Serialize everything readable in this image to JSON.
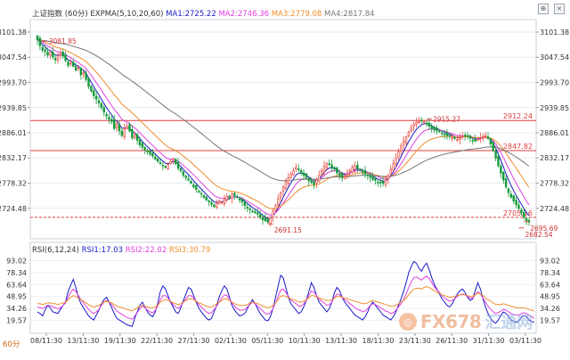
{
  "header": {
    "title": "上证指数",
    "period": "60分",
    "indicator": "EXPMA(5,10,20,60)",
    "ma1": "MA1:2725.22",
    "ma2": "MA2:2746.36",
    "ma3": "MA3:2779.08",
    "ma4": "MA4:2817.84"
  },
  "rsi_header": {
    "indicator": "RSI(6,12,24)",
    "rsi1": "RSI1:17.03",
    "rsi2": "RSI2:22.02",
    "rsi3": "RSI3:30.79"
  },
  "toolbar": {
    "zoom_icon": "search-plus-icon",
    "close_icon": "close-icon"
  },
  "bottom_label": "60分",
  "watermark": {
    "text": "FX678",
    "cn": "汇通网"
  },
  "colors": {
    "up": "#e8493f",
    "down": "#169b3b",
    "ma1": "#1a1ac8",
    "ma2": "#e040e0",
    "ma3": "#ef8e2c",
    "ma4": "#777777",
    "hline": "#e03c3c"
  },
  "chart_data": [
    {
      "type": "candlestick",
      "y_ticks": [
        "3101.38",
        "3047.54",
        "2993.70",
        "2939.85",
        "2886.01",
        "2832.17",
        "2778.32",
        "2724.48"
      ],
      "ylim": [
        2670.64,
        3101.38
      ],
      "x_ticks": [
        "08/11:30",
        "13/11:30",
        "19/11:30",
        "22/11:30",
        "27/11:30",
        "02/11:30",
        "05/11:30",
        "10/11:30",
        "13/11:30",
        "18/11:30",
        "23/11:30",
        "26/11:30",
        "31/11:30",
        "03/11:30"
      ],
      "horizontal_lines": [
        {
          "value": 2912.24,
          "label": "2912.24"
        },
        {
          "value": 2847.82,
          "label": "2847.82"
        },
        {
          "value": 2705.16,
          "label": "2705.16"
        }
      ],
      "annotations": [
        {
          "text": "3081.85",
          "value": 3081.85,
          "index": 2
        },
        {
          "text": "2915.27",
          "value": 2915.27,
          "index": 152
        },
        {
          "text": "2691.15",
          "value": 2691.15,
          "index": 90
        },
        {
          "text": "2695.69",
          "value": 2695.69,
          "index": 190
        },
        {
          "text": "2682.54",
          "value": 2682.54,
          "index": 188
        }
      ],
      "close": [
        3085,
        3072,
        3063,
        3060,
        3052,
        3058,
        3048,
        3042,
        3051,
        3055,
        3050,
        3040,
        3030,
        3035,
        3028,
        3020,
        3025,
        3010,
        3015,
        3000,
        2985,
        2975,
        2965,
        2958,
        2950,
        2940,
        2930,
        2922,
        2915,
        2910,
        2895,
        2905,
        2890,
        2880,
        2895,
        2900,
        2890,
        2875,
        2880,
        2870,
        2860,
        2855,
        2850,
        2845,
        2840,
        2836,
        2830,
        2825,
        2820,
        2815,
        2812,
        2818,
        2825,
        2830,
        2820,
        2810,
        2805,
        2795,
        2790,
        2785,
        2778,
        2770,
        2765,
        2760,
        2755,
        2748,
        2742,
        2738,
        2733,
        2728,
        2735,
        2740,
        2738,
        2745,
        2750,
        2748,
        2755,
        2752,
        2748,
        2742,
        2738,
        2730,
        2725,
        2722,
        2718,
        2715,
        2712,
        2705,
        2700,
        2698,
        2695,
        2705,
        2718,
        2730,
        2745,
        2758,
        2770,
        2782,
        2790,
        2798,
        2805,
        2812,
        2808,
        2800,
        2795,
        2790,
        2783,
        2780,
        2775,
        2785,
        2795,
        2805,
        2815,
        2820,
        2818,
        2812,
        2808,
        2800,
        2795,
        2790,
        2792,
        2798,
        2805,
        2812,
        2815,
        2810,
        2806,
        2802,
        2798,
        2794,
        2790,
        2786,
        2784,
        2780,
        2779,
        2778,
        2785,
        2795,
        2808,
        2820,
        2832,
        2845,
        2858,
        2868,
        2878,
        2888,
        2896,
        2903,
        2908,
        2910,
        2912,
        2910,
        2905,
        2900,
        2895,
        2892,
        2890,
        2888,
        2885,
        2882,
        2880,
        2878,
        2876,
        2874,
        2872,
        2875,
        2879,
        2880,
        2878,
        2874,
        2870,
        2868,
        2872,
        2876,
        2878,
        2880,
        2874,
        2862,
        2848,
        2832,
        2815,
        2800,
        2785,
        2770,
        2758,
        2748,
        2740,
        2732,
        2724,
        2715,
        2705,
        2698,
        2695
      ]
    },
    {
      "type": "line",
      "title": "RSI(6,12,24)",
      "y_ticks": [
        "93.02",
        "78.34",
        "63.64",
        "48.95",
        "34.26",
        "19.57"
      ],
      "ylim": [
        8,
        98
      ],
      "series": [
        {
          "name": "RSI1",
          "color": "#1a1ac8",
          "values": [
            30,
            28,
            25,
            32,
            38,
            35,
            30,
            29,
            28,
            33,
            38,
            42,
            55,
            63,
            70,
            60,
            48,
            40,
            35,
            30,
            25,
            22,
            20,
            26,
            32,
            40,
            45,
            48,
            42,
            35,
            28,
            22,
            20,
            18,
            16,
            14,
            13,
            12,
            22,
            30,
            38,
            42,
            36,
            30,
            26,
            24,
            30,
            40,
            55,
            62,
            58,
            50,
            42,
            36,
            30,
            28,
            35,
            44,
            52,
            60,
            58,
            50,
            42,
            35,
            30,
            26,
            22,
            20,
            22,
            30,
            38,
            48,
            56,
            62,
            58,
            48,
            38,
            32,
            28,
            25,
            26,
            28,
            34,
            40,
            45,
            40,
            34,
            28,
            24,
            20,
            19,
            24,
            34,
            48,
            62,
            75,
            72,
            60,
            48,
            40,
            36,
            32,
            28,
            30,
            36,
            44,
            55,
            66,
            60,
            50,
            42,
            38,
            34,
            30,
            34,
            42,
            54,
            60,
            56,
            48,
            42,
            38,
            34,
            30,
            26,
            24,
            22,
            20,
            24,
            30,
            38,
            42,
            38,
            34,
            30,
            26,
            24,
            22,
            20,
            24,
            30,
            38,
            46,
            55,
            66,
            78,
            86,
            92,
            90,
            84,
            80,
            86,
            90,
            82,
            72,
            64,
            58,
            52,
            46,
            42,
            38,
            36,
            40,
            46,
            52,
            56,
            58,
            54,
            48,
            44,
            46,
            56,
            66,
            58,
            46,
            36,
            28,
            22,
            18,
            16,
            20,
            26,
            30,
            28,
            24,
            20,
            18,
            17,
            19,
            23,
            26,
            24,
            20,
            18,
            17
          ]
        },
        {
          "name": "RSI2",
          "color": "#e040e0",
          "values": [
            36,
            35,
            34,
            36,
            38,
            38,
            36,
            35,
            34,
            35,
            38,
            41,
            48,
            54,
            58,
            55,
            50,
            45,
            41,
            37,
            33,
            30,
            28,
            30,
            33,
            38,
            42,
            44,
            42,
            39,
            35,
            31,
            29,
            27,
            25,
            23,
            22,
            21,
            25,
            29,
            34,
            37,
            35,
            32,
            30,
            29,
            32,
            37,
            45,
            50,
            50,
            47,
            43,
            39,
            36,
            34,
            37,
            42,
            46,
            50,
            50,
            47,
            43,
            39,
            36,
            33,
            30,
            28,
            29,
            33,
            37,
            42,
            47,
            51,
            50,
            46,
            41,
            37,
            34,
            32,
            32,
            33,
            36,
            39,
            42,
            40,
            37,
            34,
            31,
            28,
            27,
            29,
            34,
            41,
            49,
            57,
            58,
            54,
            49,
            45,
            42,
            40,
            37,
            37,
            40,
            44,
            50,
            56,
            54,
            50,
            46,
            43,
            41,
            38,
            39,
            42,
            48,
            52,
            51,
            48,
            45,
            43,
            40,
            38,
            35,
            33,
            32,
            30,
            31,
            34,
            38,
            40,
            39,
            37,
            35,
            33,
            31,
            30,
            28,
            29,
            32,
            36,
            40,
            45,
            52,
            60,
            67,
            72,
            73,
            71,
            69,
            72,
            74,
            71,
            66,
            61,
            57,
            54,
            50,
            47,
            45,
            43,
            44,
            46,
            49,
            51,
            52,
            51,
            49,
            47,
            47,
            51,
            55,
            52,
            47,
            42,
            37,
            33,
            30,
            28,
            29,
            31,
            33,
            32,
            30,
            28,
            27,
            26,
            26,
            28,
            29,
            28,
            26,
            24,
            22
          ]
        },
        {
          "name": "RSI3",
          "color": "#ef8e2c",
          "values": [
            40,
            40,
            39,
            40,
            41,
            41,
            40,
            40,
            39,
            40,
            41,
            42,
            45,
            48,
            50,
            49,
            47,
            45,
            43,
            41,
            39,
            37,
            36,
            37,
            38,
            40,
            42,
            43,
            42,
            41,
            39,
            37,
            36,
            35,
            34,
            33,
            32,
            31,
            33,
            35,
            37,
            38,
            37,
            36,
            35,
            35,
            36,
            38,
            42,
            44,
            45,
            44,
            43,
            41,
            40,
            39,
            40,
            42,
            44,
            46,
            46,
            45,
            43,
            41,
            40,
            38,
            37,
            36,
            36,
            38,
            40,
            42,
            44,
            46,
            46,
            44,
            42,
            40,
            39,
            38,
            38,
            38,
            39,
            41,
            42,
            41,
            40,
            39,
            37,
            36,
            35,
            36,
            38,
            41,
            45,
            49,
            50,
            49,
            47,
            46,
            45,
            44,
            42,
            42,
            43,
            45,
            47,
            50,
            50,
            48,
            47,
            46,
            45,
            44,
            44,
            45,
            47,
            49,
            49,
            48,
            47,
            46,
            45,
            44,
            43,
            42,
            41,
            40,
            40,
            41,
            43,
            44,
            43,
            42,
            41,
            40,
            39,
            38,
            37,
            37,
            38,
            40,
            42,
            44,
            47,
            51,
            55,
            58,
            59,
            59,
            58,
            60,
            61,
            60,
            58,
            56,
            54,
            53,
            51,
            50,
            49,
            48,
            48,
            49,
            50,
            51,
            51,
            51,
            50,
            49,
            49,
            51,
            53,
            52,
            50,
            47,
            45,
            43,
            41,
            39,
            39,
            39,
            40,
            39,
            38,
            37,
            36,
            35,
            35,
            35,
            35,
            34,
            33,
            32,
            31
          ]
        }
      ]
    }
  ]
}
